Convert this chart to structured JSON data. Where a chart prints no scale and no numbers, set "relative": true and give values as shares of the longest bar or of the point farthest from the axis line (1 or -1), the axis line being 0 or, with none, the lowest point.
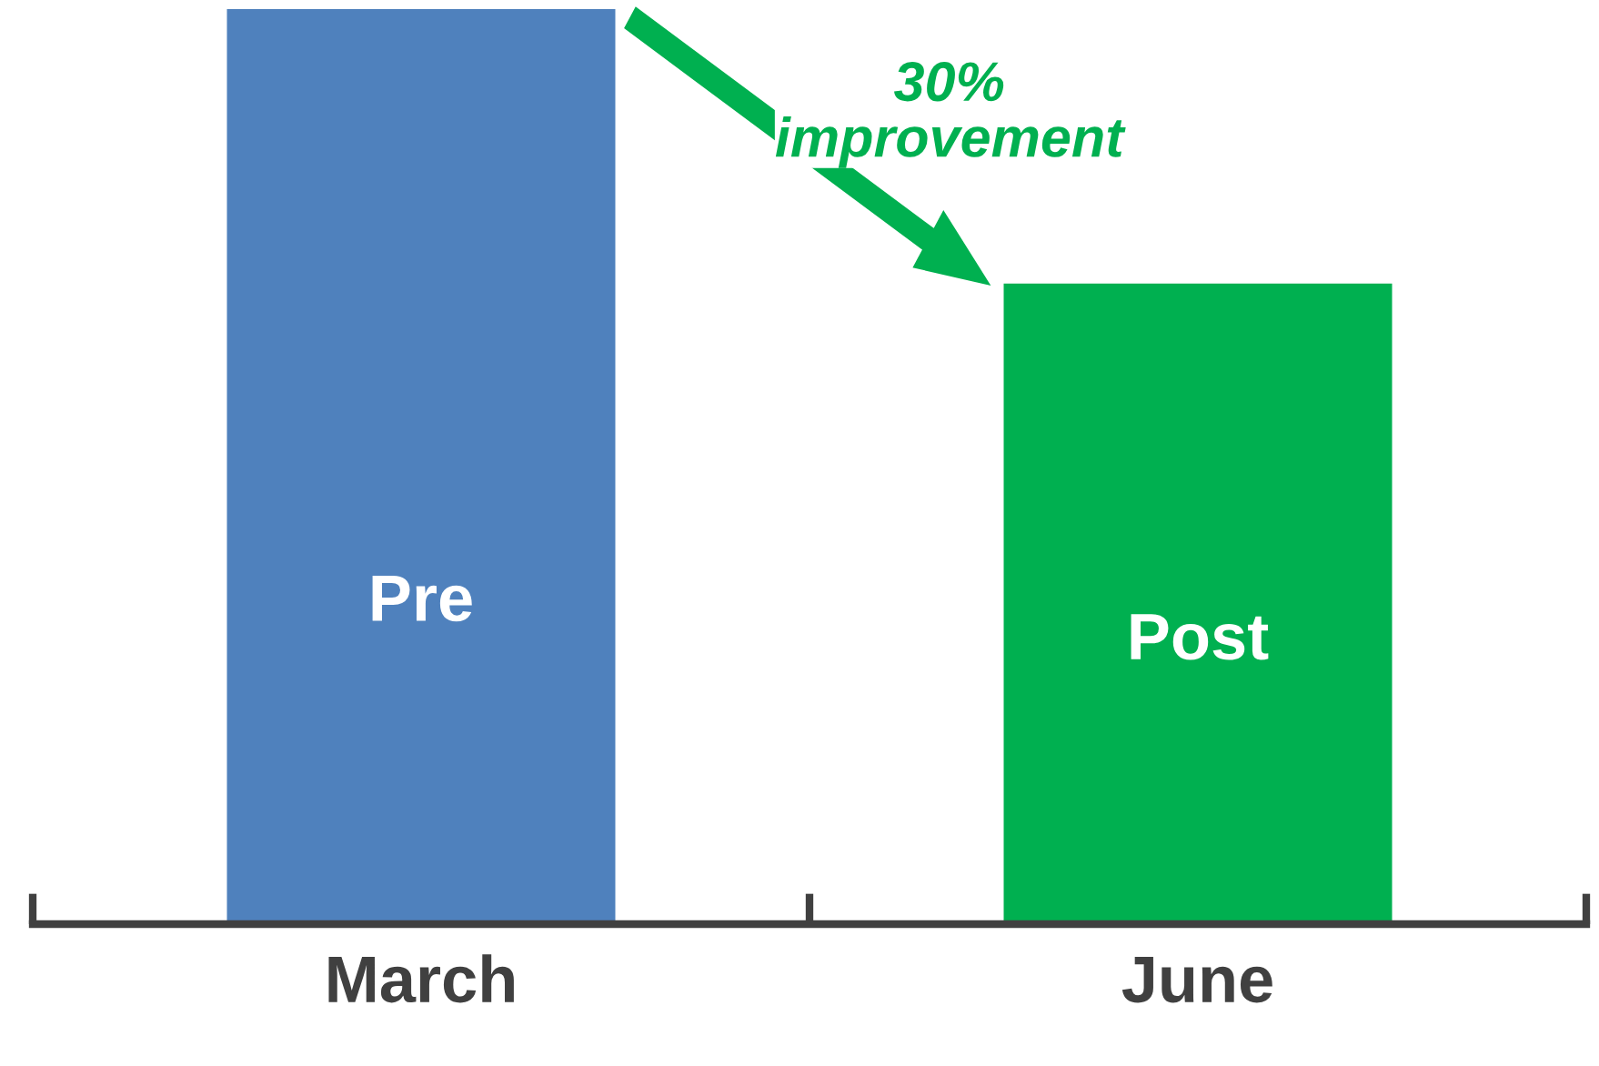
{
  "chart_data": {
    "type": "bar",
    "relative": true,
    "categories": [
      "March",
      "June"
    ],
    "values": [
      1,
      0.7
    ],
    "colors": [
      "#4f81bd",
      "#00b050"
    ],
    "annotations": [
      "Pre",
      "Post",
      "30%\nimprovement"
    ],
    "grid": false
  }
}
